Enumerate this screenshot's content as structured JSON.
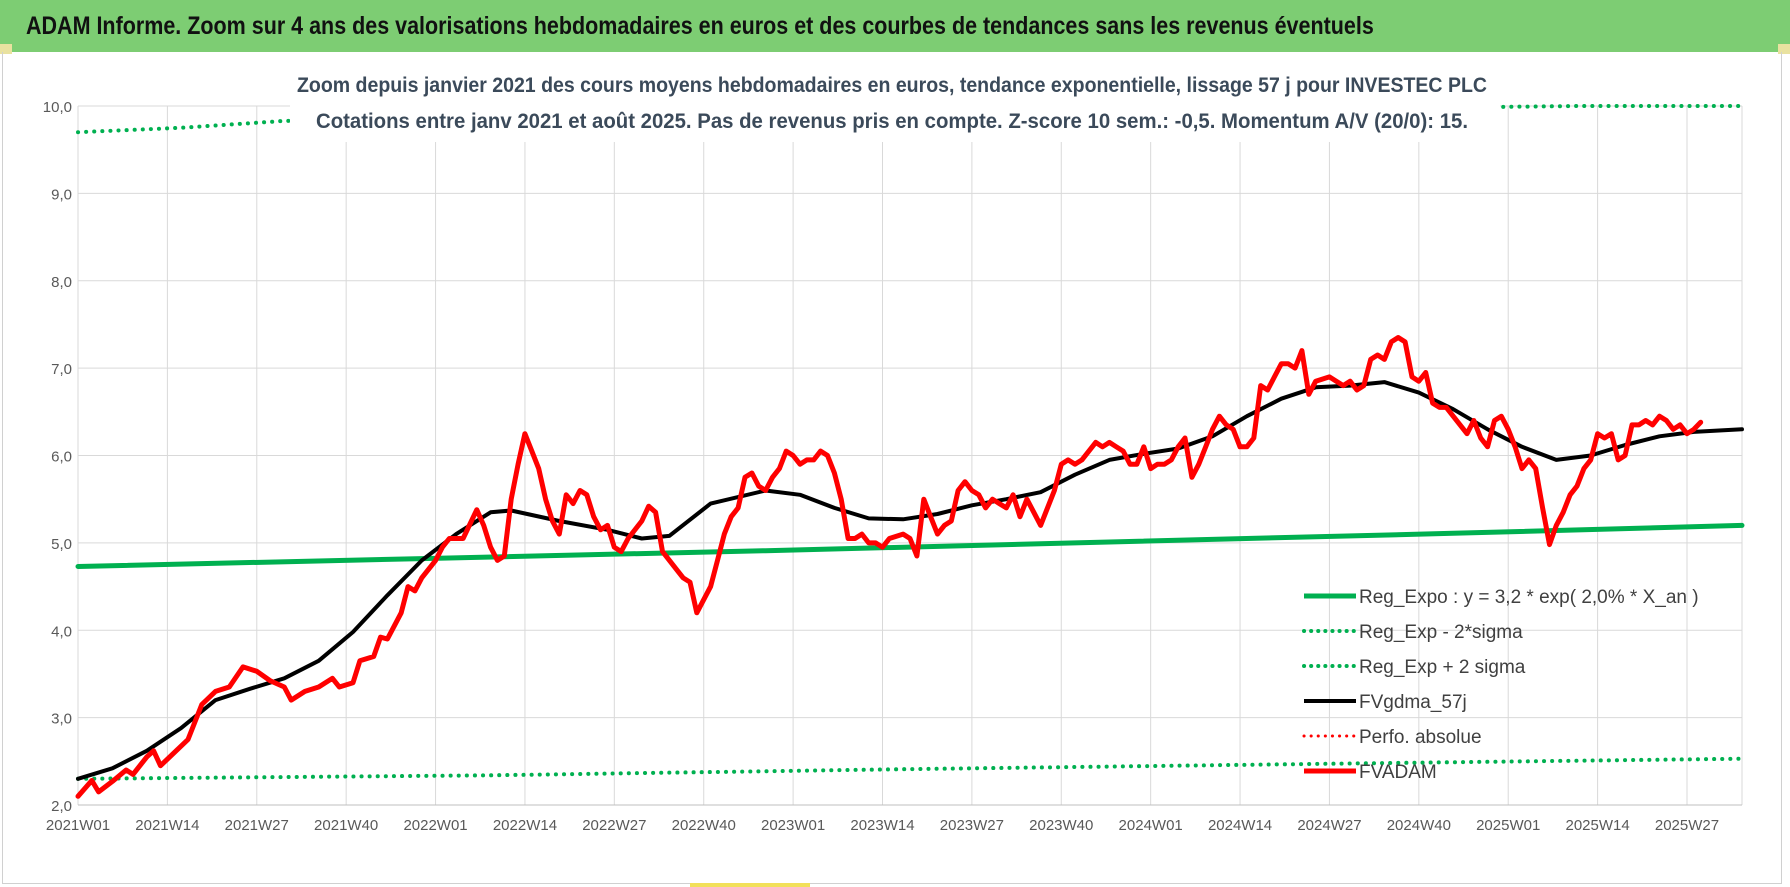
{
  "header": {
    "title": "ADAM Informe. Zoom sur 4 ans des valorisations hebdomadaires en euros et des courbes de tendances sans les revenus éventuels"
  },
  "chart_data": {
    "type": "line",
    "title": "Zoom depuis janvier 2021 des cours moyens hebdomadaires en euros, tendance exponentielle, lissage 57 j pour INVESTEC PLC",
    "subtitle": "Cotations entre janv 2021 et août 2025. Pas de revenus pris en compte. Z-score 10 sem.: -0,5. Momentum A/V (20/0): 15.",
    "ylim": [
      2.0,
      10.0
    ],
    "yticks": [
      "2,0",
      "3,0",
      "4,0",
      "5,0",
      "6,0",
      "7,0",
      "8,0",
      "9,0",
      "10,0"
    ],
    "xticks": [
      "2021W01",
      "2021W14",
      "2021W27",
      "2021W40",
      "2022W01",
      "2022W14",
      "2022W27",
      "2022W40",
      "2023W01",
      "2023W14",
      "2023W27",
      "2023W40",
      "2024W01",
      "2024W14",
      "2024W27",
      "2024W40",
      "2025W01",
      "2025W14",
      "2025W27"
    ],
    "x_range_weeks": [
      0,
      242
    ],
    "grid": true,
    "legend_position": "bottom-right",
    "series": [
      {
        "name": "Reg_Expo : y = 3,2 * exp( 2,0% *  X_an )",
        "color": "#00b050",
        "style": "solid",
        "width": 5,
        "points": [
          [
            0,
            4.73
          ],
          [
            50,
            4.82
          ],
          [
            100,
            4.91
          ],
          [
            150,
            5.01
          ],
          [
            200,
            5.11
          ],
          [
            242,
            5.2
          ]
        ]
      },
      {
        "name": "Reg_Exp - 2*sigma",
        "color": "#00b050",
        "style": "dotted",
        "width": 4,
        "points": [
          [
            0,
            2.3
          ],
          [
            60,
            2.34
          ],
          [
            120,
            2.41
          ],
          [
            180,
            2.47
          ],
          [
            242,
            2.53
          ]
        ]
      },
      {
        "name": "Reg_Exp + 2 sigma",
        "color": "#00b050",
        "style": "dotted",
        "width": 4,
        "points": [
          [
            0,
            9.7
          ],
          [
            15,
            9.75
          ],
          [
            30,
            9.83
          ],
          [
            218,
            10.0
          ],
          [
            242,
            10.0
          ]
        ]
      },
      {
        "name": "FVgdma_57j",
        "color": "#000000",
        "style": "solid",
        "width": 4,
        "points": [
          [
            0,
            2.3
          ],
          [
            5,
            2.42
          ],
          [
            10,
            2.62
          ],
          [
            15,
            2.88
          ],
          [
            20,
            3.2
          ],
          [
            25,
            3.33
          ],
          [
            30,
            3.45
          ],
          [
            35,
            3.65
          ],
          [
            40,
            3.98
          ],
          [
            45,
            4.4
          ],
          [
            50,
            4.8
          ],
          [
            55,
            5.1
          ],
          [
            60,
            5.35
          ],
          [
            63,
            5.37
          ],
          [
            70,
            5.25
          ],
          [
            77,
            5.15
          ],
          [
            82,
            5.05
          ],
          [
            86,
            5.08
          ],
          [
            92,
            5.45
          ],
          [
            100,
            5.6
          ],
          [
            105,
            5.55
          ],
          [
            110,
            5.4
          ],
          [
            115,
            5.28
          ],
          [
            120,
            5.27
          ],
          [
            125,
            5.33
          ],
          [
            130,
            5.43
          ],
          [
            135,
            5.5
          ],
          [
            140,
            5.58
          ],
          [
            145,
            5.78
          ],
          [
            150,
            5.95
          ],
          [
            155,
            6.02
          ],
          [
            160,
            6.08
          ],
          [
            165,
            6.22
          ],
          [
            170,
            6.45
          ],
          [
            175,
            6.65
          ],
          [
            180,
            6.78
          ],
          [
            185,
            6.8
          ],
          [
            190,
            6.84
          ],
          [
            195,
            6.72
          ],
          [
            200,
            6.53
          ],
          [
            205,
            6.3
          ],
          [
            210,
            6.1
          ],
          [
            215,
            5.95
          ],
          [
            220,
            6.0
          ],
          [
            225,
            6.12
          ],
          [
            230,
            6.22
          ],
          [
            235,
            6.27
          ],
          [
            242,
            6.3
          ]
        ]
      },
      {
        "name": "Perfo. absolue",
        "color": "#ff0000",
        "style": "dotted",
        "width": 3,
        "points": []
      },
      {
        "name": "FVADAM",
        "color": "#ff0000",
        "style": "solid",
        "width": 5,
        "points": [
          [
            0,
            2.1
          ],
          [
            2,
            2.28
          ],
          [
            3,
            2.15
          ],
          [
            5,
            2.27
          ],
          [
            7,
            2.4
          ],
          [
            8,
            2.35
          ],
          [
            10,
            2.55
          ],
          [
            11,
            2.62
          ],
          [
            12,
            2.45
          ],
          [
            14,
            2.6
          ],
          [
            16,
            2.75
          ],
          [
            18,
            3.15
          ],
          [
            20,
            3.3
          ],
          [
            22,
            3.35
          ],
          [
            24,
            3.58
          ],
          [
            26,
            3.53
          ],
          [
            28,
            3.42
          ],
          [
            30,
            3.35
          ],
          [
            31,
            3.2
          ],
          [
            33,
            3.3
          ],
          [
            35,
            3.35
          ],
          [
            37,
            3.45
          ],
          [
            38,
            3.35
          ],
          [
            40,
            3.4
          ],
          [
            41,
            3.65
          ],
          [
            43,
            3.7
          ],
          [
            44,
            3.92
          ],
          [
            45,
            3.9
          ],
          [
            47,
            4.2
          ],
          [
            48,
            4.5
          ],
          [
            49,
            4.45
          ],
          [
            50,
            4.6
          ],
          [
            52,
            4.8
          ],
          [
            53,
            4.95
          ],
          [
            54,
            5.05
          ],
          [
            56,
            5.05
          ],
          [
            58,
            5.38
          ],
          [
            59,
            5.2
          ],
          [
            60,
            4.95
          ],
          [
            61,
            4.8
          ],
          [
            62,
            4.85
          ],
          [
            63,
            5.5
          ],
          [
            64,
            5.9
          ],
          [
            65,
            6.25
          ],
          [
            66,
            6.05
          ],
          [
            67,
            5.85
          ],
          [
            68,
            5.5
          ],
          [
            69,
            5.25
          ],
          [
            70,
            5.1
          ],
          [
            71,
            5.55
          ],
          [
            72,
            5.45
          ],
          [
            73,
            5.6
          ],
          [
            74,
            5.55
          ],
          [
            75,
            5.3
          ],
          [
            76,
            5.15
          ],
          [
            77,
            5.2
          ],
          [
            78,
            4.95
          ],
          [
            79,
            4.9
          ],
          [
            80,
            5.05
          ],
          [
            82,
            5.25
          ],
          [
            83,
            5.42
          ],
          [
            84,
            5.35
          ],
          [
            85,
            4.9
          ],
          [
            87,
            4.7
          ],
          [
            88,
            4.6
          ],
          [
            89,
            4.55
          ],
          [
            90,
            4.2
          ],
          [
            91,
            4.35
          ],
          [
            92,
            4.5
          ],
          [
            93,
            4.8
          ],
          [
            94,
            5.1
          ],
          [
            95,
            5.3
          ],
          [
            96,
            5.4
          ],
          [
            97,
            5.75
          ],
          [
            98,
            5.8
          ],
          [
            99,
            5.65
          ],
          [
            100,
            5.6
          ],
          [
            101,
            5.75
          ],
          [
            102,
            5.85
          ],
          [
            103,
            6.05
          ],
          [
            104,
            6.0
          ],
          [
            105,
            5.9
          ],
          [
            106,
            5.95
          ],
          [
            107,
            5.95
          ],
          [
            108,
            6.05
          ],
          [
            109,
            6.0
          ],
          [
            110,
            5.8
          ],
          [
            111,
            5.5
          ],
          [
            112,
            5.05
          ],
          [
            113,
            5.05
          ],
          [
            114,
            5.1
          ],
          [
            115,
            5.0
          ],
          [
            116,
            5.0
          ],
          [
            117,
            4.95
          ],
          [
            118,
            5.05
          ],
          [
            120,
            5.1
          ],
          [
            121,
            5.05
          ],
          [
            122,
            4.85
          ],
          [
            123,
            5.5
          ],
          [
            124,
            5.3
          ],
          [
            125,
            5.1
          ],
          [
            126,
            5.2
          ],
          [
            127,
            5.25
          ],
          [
            128,
            5.6
          ],
          [
            129,
            5.7
          ],
          [
            130,
            5.6
          ],
          [
            131,
            5.55
          ],
          [
            132,
            5.4
          ],
          [
            133,
            5.5
          ],
          [
            134,
            5.45
          ],
          [
            135,
            5.4
          ],
          [
            136,
            5.55
          ],
          [
            137,
            5.3
          ],
          [
            138,
            5.5
          ],
          [
            139,
            5.35
          ],
          [
            140,
            5.2
          ],
          [
            141,
            5.4
          ],
          [
            142,
            5.6
          ],
          [
            143,
            5.9
          ],
          [
            144,
            5.95
          ],
          [
            145,
            5.9
          ],
          [
            146,
            5.95
          ],
          [
            148,
            6.15
          ],
          [
            149,
            6.1
          ],
          [
            150,
            6.15
          ],
          [
            151,
            6.1
          ],
          [
            152,
            6.05
          ],
          [
            153,
            5.9
          ],
          [
            154,
            5.9
          ],
          [
            155,
            6.1
          ],
          [
            156,
            5.85
          ],
          [
            157,
            5.9
          ],
          [
            158,
            5.9
          ],
          [
            159,
            5.95
          ],
          [
            160,
            6.1
          ],
          [
            161,
            6.2
          ],
          [
            162,
            5.75
          ],
          [
            163,
            5.9
          ],
          [
            164,
            6.1
          ],
          [
            165,
            6.3
          ],
          [
            166,
            6.45
          ],
          [
            167,
            6.35
          ],
          [
            168,
            6.3
          ],
          [
            169,
            6.1
          ],
          [
            170,
            6.1
          ],
          [
            171,
            6.2
          ],
          [
            172,
            6.8
          ],
          [
            173,
            6.75
          ],
          [
            174,
            6.9
          ],
          [
            175,
            7.05
          ],
          [
            176,
            7.05
          ],
          [
            177,
            7.0
          ],
          [
            178,
            7.2
          ],
          [
            179,
            6.7
          ],
          [
            180,
            6.85
          ],
          [
            182,
            6.9
          ],
          [
            183,
            6.85
          ],
          [
            184,
            6.8
          ],
          [
            185,
            6.85
          ],
          [
            186,
            6.75
          ],
          [
            187,
            6.8
          ],
          [
            188,
            7.1
          ],
          [
            189,
            7.15
          ],
          [
            190,
            7.1
          ],
          [
            191,
            7.3
          ],
          [
            192,
            7.35
          ],
          [
            193,
            7.3
          ],
          [
            194,
            6.9
          ],
          [
            195,
            6.85
          ],
          [
            196,
            6.95
          ],
          [
            197,
            6.6
          ],
          [
            198,
            6.55
          ],
          [
            199,
            6.55
          ],
          [
            200,
            6.45
          ],
          [
            201,
            6.35
          ],
          [
            202,
            6.25
          ],
          [
            203,
            6.4
          ],
          [
            204,
            6.2
          ],
          [
            205,
            6.1
          ],
          [
            206,
            6.4
          ],
          [
            207,
            6.45
          ],
          [
            208,
            6.3
          ],
          [
            209,
            6.1
          ],
          [
            210,
            5.85
          ],
          [
            211,
            5.95
          ],
          [
            212,
            5.85
          ],
          [
            213,
            5.4
          ],
          [
            214,
            4.98
          ],
          [
            215,
            5.2
          ],
          [
            216,
            5.35
          ],
          [
            217,
            5.55
          ],
          [
            218,
            5.65
          ],
          [
            219,
            5.85
          ],
          [
            220,
            5.95
          ],
          [
            221,
            6.25
          ],
          [
            222,
            6.2
          ],
          [
            223,
            6.25
          ],
          [
            224,
            5.95
          ],
          [
            225,
            6.0
          ],
          [
            226,
            6.35
          ],
          [
            227,
            6.35
          ],
          [
            228,
            6.4
          ],
          [
            229,
            6.35
          ],
          [
            230,
            6.45
          ],
          [
            231,
            6.4
          ],
          [
            232,
            6.3
          ],
          [
            233,
            6.35
          ],
          [
            234,
            6.25
          ],
          [
            235,
            6.3
          ],
          [
            236,
            6.38
          ]
        ]
      }
    ]
  }
}
